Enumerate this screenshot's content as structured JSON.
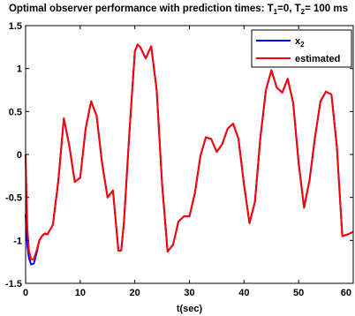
{
  "chart_data": {
    "type": "line",
    "title_parts": [
      "Optimal observer performance with prediction times: T",
      "1",
      "=0, T",
      "2",
      "= 100 ms"
    ],
    "xlabel": "t(sec)",
    "ylabel": "",
    "xlim": [
      0,
      60
    ],
    "ylim": [
      -1.5,
      1.5
    ],
    "xticks": [
      0,
      10,
      20,
      30,
      40,
      50,
      60
    ],
    "yticks": [
      -1.5,
      -1,
      -0.5,
      0,
      0.5,
      1,
      1.5
    ],
    "ytick_labels": [
      "-1.5",
      "-1",
      "-0.5",
      "0",
      "0.5",
      "1",
      "1.5"
    ],
    "grid": false,
    "legend_position": "top-right",
    "series": [
      {
        "name": "x",
        "name_subscript": "2",
        "color": "#0000ff",
        "x": [
          0,
          0.3,
          0.6,
          1,
          1.5,
          2,
          2.5,
          3,
          3.5,
          4,
          5,
          6,
          7,
          8,
          9,
          10,
          11,
          12,
          13,
          14,
          15,
          16,
          17,
          17.5,
          18,
          19,
          20,
          20.5,
          21,
          22,
          23,
          24,
          25,
          26,
          27,
          28,
          29,
          30,
          31,
          32,
          33,
          34,
          35,
          36,
          37,
          38,
          39,
          40,
          41,
          42,
          43,
          44,
          45,
          46,
          47,
          48,
          49,
          50,
          51,
          52,
          53,
          54,
          55,
          56,
          57,
          58,
          59,
          60
        ],
        "y": [
          -0.7,
          -1.05,
          -1.2,
          -1.28,
          -1.27,
          -1.15,
          -1.0,
          -0.95,
          -0.92,
          -0.93,
          -0.82,
          -0.3,
          0.42,
          0.1,
          -0.32,
          -0.27,
          0.3,
          0.62,
          0.45,
          -0.1,
          -0.5,
          -0.42,
          -1.12,
          -1.12,
          -0.8,
          0.25,
          1.2,
          1.28,
          1.25,
          1.12,
          1.26,
          0.75,
          -0.35,
          -1.13,
          -1.05,
          -0.78,
          -0.72,
          -0.72,
          -0.45,
          -0.02,
          0.2,
          0.18,
          0.03,
          0.12,
          0.3,
          0.36,
          0.18,
          -0.35,
          -0.8,
          -0.55,
          0.2,
          0.75,
          0.98,
          0.78,
          0.72,
          0.88,
          0.6,
          -0.1,
          -0.62,
          -0.3,
          0.2,
          0.62,
          0.73,
          0.7,
          0.1,
          -0.95,
          -0.93,
          -0.9
        ]
      },
      {
        "name": "estimated",
        "color": "#ff0000",
        "x": [
          0,
          0.1,
          0.3,
          0.6,
          1,
          1.5,
          2,
          2.5,
          3,
          3.5,
          4,
          5,
          6,
          7,
          8,
          9,
          10,
          11,
          12,
          13,
          14,
          15,
          16,
          17,
          17.5,
          18,
          19,
          20,
          20.5,
          21,
          22,
          23,
          24,
          25,
          26,
          27,
          28,
          29,
          30,
          31,
          32,
          33,
          34,
          35,
          36,
          37,
          38,
          39,
          40,
          41,
          42,
          43,
          44,
          45,
          46,
          47,
          48,
          49,
          50,
          51,
          52,
          53,
          54,
          55,
          56,
          57,
          58,
          59,
          60
        ],
        "y": [
          0,
          -0.3,
          -0.85,
          -1.12,
          -1.22,
          -1.22,
          -1.12,
          -1.0,
          -0.95,
          -0.92,
          -0.93,
          -0.82,
          -0.3,
          0.42,
          0.1,
          -0.32,
          -0.27,
          0.3,
          0.62,
          0.45,
          -0.1,
          -0.5,
          -0.42,
          -1.12,
          -1.12,
          -0.8,
          0.25,
          1.2,
          1.28,
          1.25,
          1.12,
          1.26,
          0.75,
          -0.35,
          -1.13,
          -1.05,
          -0.78,
          -0.72,
          -0.72,
          -0.45,
          -0.02,
          0.2,
          0.18,
          0.03,
          0.12,
          0.3,
          0.36,
          0.18,
          -0.35,
          -0.8,
          -0.55,
          0.2,
          0.75,
          0.98,
          0.78,
          0.72,
          0.88,
          0.6,
          -0.1,
          -0.62,
          -0.3,
          0.2,
          0.62,
          0.73,
          0.7,
          0.1,
          -0.95,
          -0.93,
          -0.9
        ]
      }
    ]
  }
}
